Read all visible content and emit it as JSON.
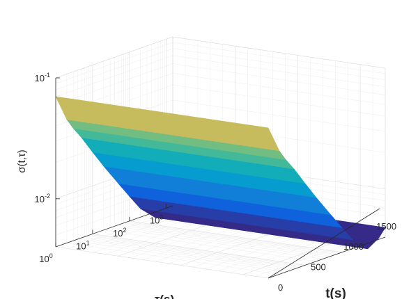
{
  "chart_data": {
    "type": "surface",
    "title": "",
    "xlabel": "t(s)",
    "ylabel": "τ(s)",
    "zlabel": "σ(t,τ)",
    "x_ticks": [
      "0",
      "500",
      "1000",
      "1500"
    ],
    "x_range": [
      0,
      1700
    ],
    "y_scale": "log",
    "y_ticks": [
      {
        "base": "10",
        "exp": "0"
      },
      {
        "base": "10",
        "exp": "1"
      },
      {
        "base": "10",
        "exp": "2"
      },
      {
        "base": "10",
        "exp": "3"
      }
    ],
    "y_range": [
      1,
      1500
    ],
    "z_scale": "log",
    "z_ticks": [
      {
        "base": "10",
        "exp": "-2"
      },
      {
        "base": "10",
        "exp": "-1"
      }
    ],
    "z_range": [
      0.004,
      0.1
    ],
    "grid": true,
    "colormap": "parula",
    "tau": [
      1,
      2,
      3,
      5,
      10,
      20,
      50,
      100,
      200,
      500,
      1000,
      1500
    ],
    "sigma": [
      0.07,
      0.042,
      0.034,
      0.027,
      0.019,
      0.0135,
      0.0088,
      0.0064,
      0.0047,
      0.0036,
      0.0041,
      0.0048
    ]
  }
}
